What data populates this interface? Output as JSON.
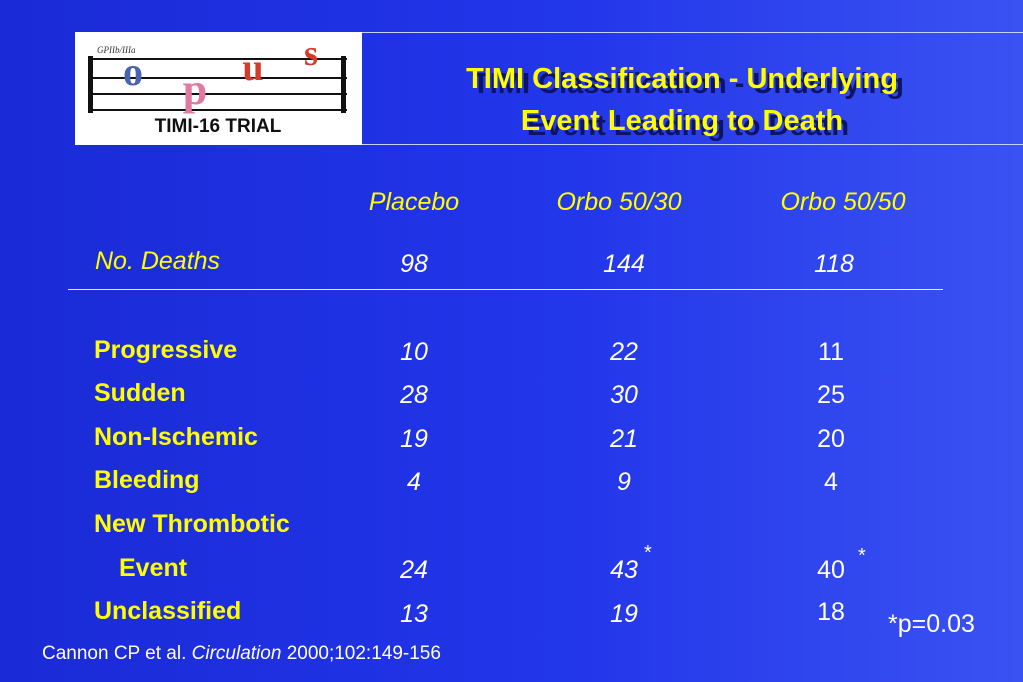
{
  "logo": {
    "small_text": "GPIIb/IIIa",
    "letter_o": "o",
    "letter_p": "p",
    "letter_u": "u",
    "letter_s": "s",
    "trial_text": "TIMI-16 TRIAL",
    "colors": {
      "o": "#4a64b0",
      "p": "#e07aa0",
      "u": "#d63a2a",
      "s": "#d63a2a"
    }
  },
  "title": {
    "line1": "TIMI Classification - Underlying",
    "line2": "Event Leading to Death"
  },
  "columns": [
    "Placebo",
    "Orbo 50/30",
    "Orbo 50/50"
  ],
  "deaths": {
    "label": "No. Deaths",
    "values": [
      "98",
      "144",
      "118"
    ]
  },
  "rows": [
    {
      "label": "Progressive",
      "values": [
        "10",
        "22",
        "11"
      ]
    },
    {
      "label": "Sudden",
      "values": [
        "28",
        "30",
        "25"
      ]
    },
    {
      "label": "Non-Ischemic",
      "values": [
        "19",
        "21",
        "20"
      ]
    },
    {
      "label": "Bleeding",
      "values": [
        "4",
        "9",
        "4"
      ]
    },
    {
      "label": "New Thrombotic",
      "label2": "Event",
      "values": [
        "24",
        "43",
        "40"
      ]
    },
    {
      "label": "Unclassified",
      "values": [
        "13",
        "19",
        "18"
      ]
    }
  ],
  "asterisk": "*",
  "footnote": "*p=0.03",
  "citation": {
    "authors": "Cannon CP et al.",
    "journal": "Circulation",
    "details": "2000;102:149-156"
  },
  "colors": {
    "background_start": "#1a2ad6",
    "background_end": "#3a52f2",
    "label_yellow": "#ffff00",
    "value_white": "#ffffff"
  }
}
